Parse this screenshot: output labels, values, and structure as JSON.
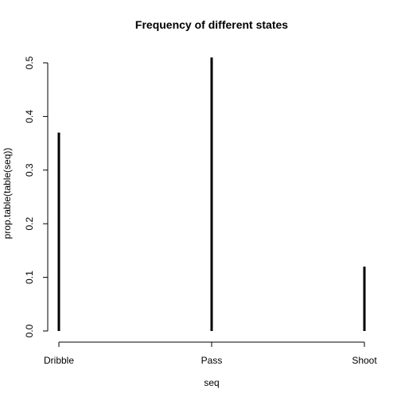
{
  "chart_data": {
    "type": "bar",
    "title": "Frequency of different states",
    "xlabel": "seq",
    "ylabel": "prop.table(table(seq))",
    "categories": [
      "Dribble",
      "Pass",
      "Shoot"
    ],
    "values": [
      0.37,
      0.51,
      0.12
    ],
    "ylim": [
      0,
      0.5
    ],
    "yticks": [
      "0.0",
      "0.1",
      "0.2",
      "0.3",
      "0.4",
      "0.5"
    ],
    "grid": false,
    "bar_color": "#000000"
  }
}
